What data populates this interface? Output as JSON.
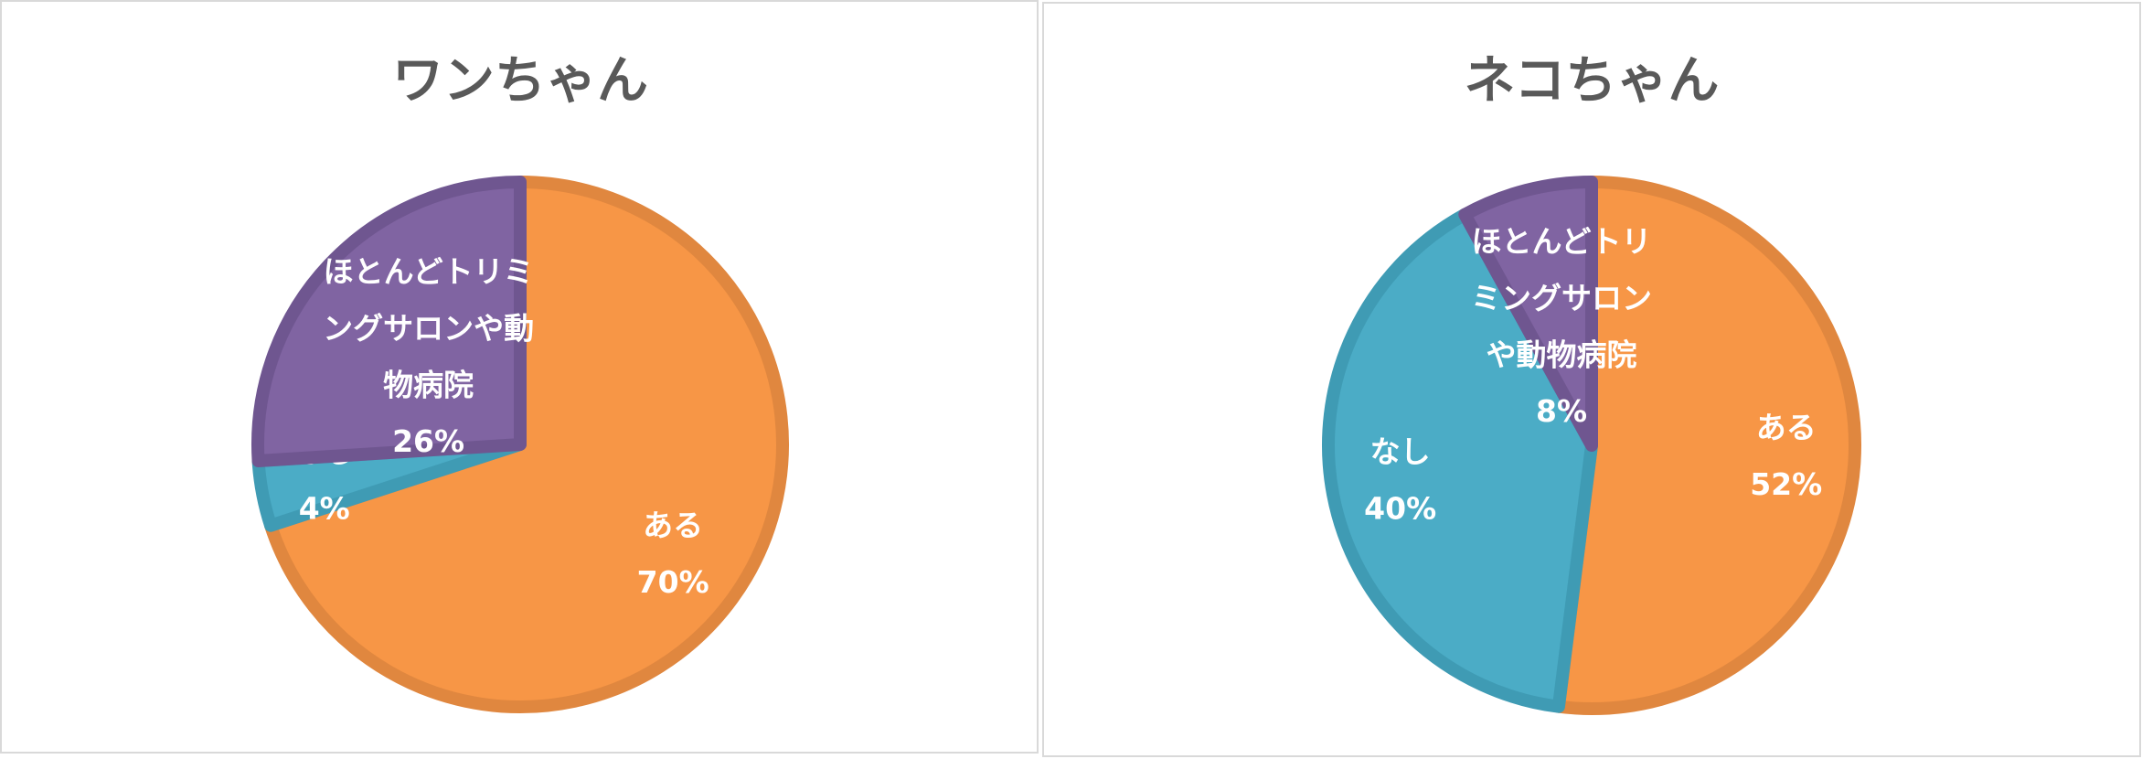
{
  "chart_data": [
    {
      "type": "pie",
      "title": "ワンちゃん",
      "categories": [
        "ある",
        "なし",
        "ほとんどトリミングサロンや動物病院"
      ],
      "values": [
        70,
        4,
        26
      ],
      "value_labels": [
        "70%",
        "4%",
        "26%"
      ],
      "colors": [
        "#f79646",
        "#4bacc6",
        "#8064a2"
      ]
    },
    {
      "type": "pie",
      "title": "ネコちゃん",
      "categories": [
        "ある",
        "なし",
        "ほとんどトリミングサロンや動物病院"
      ],
      "values": [
        52,
        40,
        8
      ],
      "value_labels": [
        "52%",
        "40%",
        "8%"
      ],
      "colors": [
        "#f79646",
        "#4bacc6",
        "#8064a2"
      ]
    }
  ]
}
